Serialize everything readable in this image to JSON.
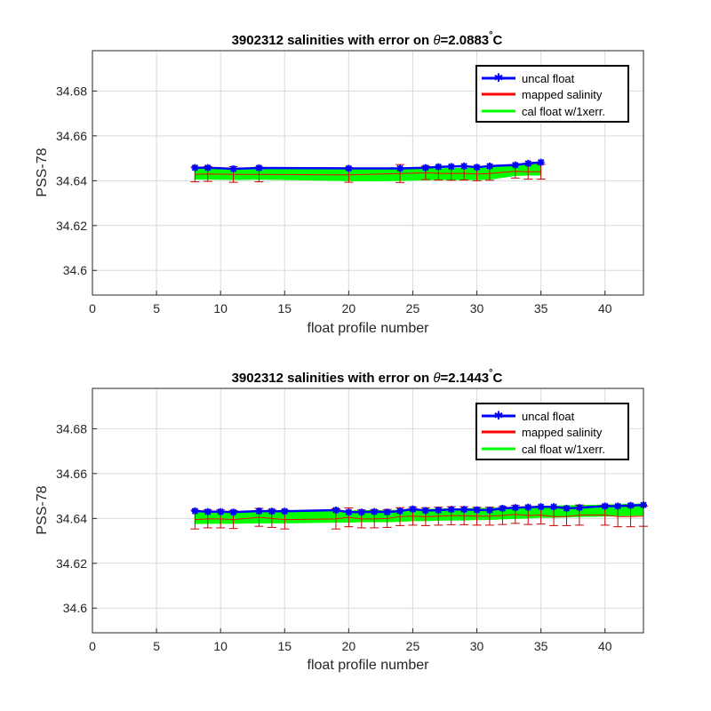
{
  "colors": {
    "uncal": "#0000ff",
    "mapped": "#ff0000",
    "errorbar": "#cc0000",
    "cal": "#00ff00",
    "grid": "#d9d9d9",
    "axis": "#262626"
  },
  "chart_data": [
    {
      "type": "line",
      "title_prefix": "3902312 salinities with error on ",
      "title_theta": "θ",
      "title_value": "=2.0883",
      "title_deg": "°",
      "title_unit": "C",
      "xlabel": "float profile number",
      "ylabel": "PSS-78",
      "xlim": [
        0,
        43
      ],
      "ylim": [
        34.589,
        34.698
      ],
      "xticks": [
        0,
        5,
        10,
        15,
        20,
        25,
        30,
        35,
        40
      ],
      "yticks": [
        34.6,
        34.62,
        34.64,
        34.66,
        34.68
      ],
      "ytick_labels": [
        "34.6",
        "34.62",
        "34.64",
        "34.66",
        "34.68"
      ],
      "grid": true,
      "legend": {
        "position": "top-right",
        "entries": [
          "uncal float",
          "mapped salinity",
          "cal float w/1xerr."
        ]
      },
      "series": [
        {
          "name": "uncal float",
          "x": [
            8,
            9,
            11,
            13,
            20,
            24,
            26,
            27,
            28,
            29,
            30,
            31,
            33,
            34,
            35
          ],
          "y": [
            34.6458,
            34.6458,
            34.6453,
            34.6457,
            34.6455,
            34.6455,
            34.6458,
            34.6462,
            34.6463,
            34.6465,
            34.646,
            34.6465,
            34.647,
            34.6477,
            34.6482
          ]
        },
        {
          "name": "mapped salinity",
          "x": [
            8,
            9,
            11,
            13,
            20,
            24,
            26,
            27,
            28,
            29,
            30,
            31,
            33,
            34,
            35
          ],
          "y": [
            34.6428,
            34.643,
            34.6428,
            34.6428,
            34.6426,
            34.6432,
            34.6435,
            34.6433,
            34.6432,
            34.6433,
            34.643,
            34.6432,
            34.6442,
            34.644,
            34.644
          ],
          "err": [
            0.0033,
            0.0033,
            0.0035,
            0.0033,
            0.0033,
            0.004,
            0.003,
            0.003,
            0.003,
            0.003,
            0.003,
            0.003,
            0.003,
            0.0033,
            0.0033
          ]
        },
        {
          "name": "cal float w/1xerr.",
          "x": [
            8,
            9,
            11,
            13,
            20,
            21,
            24,
            26,
            27,
            28,
            29,
            30,
            31,
            33,
            34,
            35
          ],
          "y": [
            34.6432,
            34.6432,
            34.643,
            34.6432,
            34.6425,
            34.6424,
            34.6426,
            34.6429,
            34.643,
            34.643,
            34.643,
            34.643,
            34.6432,
            34.6448,
            34.645,
            34.645
          ],
          "err": [
            0.0025,
            0.0025,
            0.0025,
            0.0025,
            0.0025,
            0.0025,
            0.0025,
            0.0025,
            0.0025,
            0.0025,
            0.0025,
            0.0025,
            0.0025,
            0.0025,
            0.0025,
            0.0025
          ]
        }
      ]
    },
    {
      "type": "line",
      "title_prefix": "3902312 salinities with error on ",
      "title_theta": "θ",
      "title_value": "=2.1443",
      "title_deg": "°",
      "title_unit": "C",
      "xlabel": "float profile number",
      "ylabel": "PSS-78",
      "xlim": [
        0,
        43
      ],
      "ylim": [
        34.589,
        34.698
      ],
      "xticks": [
        0,
        5,
        10,
        15,
        20,
        25,
        30,
        35,
        40
      ],
      "yticks": [
        34.6,
        34.62,
        34.64,
        34.66,
        34.68
      ],
      "ytick_labels": [
        "34.6",
        "34.62",
        "34.64",
        "34.66",
        "34.68"
      ],
      "grid": true,
      "legend": {
        "position": "top-right",
        "entries": [
          "uncal float",
          "mapped salinity",
          "cal float w/1xerr."
        ]
      },
      "series": [
        {
          "name": "uncal float",
          "x": [
            8,
            9,
            10,
            11,
            13,
            14,
            15,
            19,
            20,
            21,
            22,
            23,
            24,
            25,
            26,
            27,
            28,
            29,
            30,
            31,
            32,
            33,
            34,
            35,
            36,
            37,
            38,
            40,
            41,
            42,
            43
          ],
          "y": [
            34.6433,
            34.643,
            34.643,
            34.6428,
            34.6433,
            34.6432,
            34.6432,
            34.6437,
            34.6428,
            34.6428,
            34.643,
            34.6428,
            34.6433,
            34.6442,
            34.6435,
            34.6437,
            34.644,
            34.644,
            34.6438,
            34.6437,
            34.6445,
            34.6448,
            34.645,
            34.6452,
            34.6452,
            34.6445,
            34.6448,
            34.6455,
            34.6455,
            34.6458,
            34.646
          ]
        },
        {
          "name": "mapped salinity",
          "x": [
            8,
            9,
            10,
            11,
            13,
            14,
            15,
            19,
            20,
            21,
            22,
            23,
            24,
            25,
            26,
            27,
            28,
            29,
            30,
            31,
            32,
            33,
            34,
            35,
            36,
            37,
            38,
            40,
            41,
            42,
            43
          ],
          "y": [
            34.6395,
            34.6398,
            34.6398,
            34.6395,
            34.6405,
            34.64,
            34.6395,
            34.6398,
            34.6405,
            34.6398,
            34.6398,
            34.64,
            34.6408,
            34.641,
            34.6408,
            34.641,
            34.6412,
            34.6412,
            34.641,
            34.641,
            34.6413,
            34.6418,
            34.6413,
            34.6415,
            34.6408,
            34.6408,
            34.6415,
            34.6415,
            34.6408,
            34.6408,
            34.641
          ],
          "err": [
            0.0042,
            0.004,
            0.004,
            0.004,
            0.004,
            0.004,
            0.0042,
            0.0045,
            0.0042,
            0.004,
            0.004,
            0.004,
            0.004,
            0.004,
            0.004,
            0.004,
            0.004,
            0.004,
            0.004,
            0.004,
            0.004,
            0.004,
            0.004,
            0.004,
            0.004,
            0.004,
            0.0045,
            0.0045,
            0.0045,
            0.0045,
            0.0045
          ]
        },
        {
          "name": "cal float w/1xerr.",
          "x": [
            8,
            9,
            10,
            11,
            13,
            14,
            15,
            19,
            20,
            21,
            22,
            23,
            24,
            25,
            26,
            27,
            28,
            29,
            30,
            31,
            32,
            33,
            34,
            35,
            36,
            37,
            38,
            40,
            41,
            42,
            43
          ],
          "y": [
            34.6402,
            34.6403,
            34.6403,
            34.6403,
            34.6405,
            34.6405,
            34.6405,
            34.6408,
            34.6408,
            34.641,
            34.641,
            34.641,
            34.6412,
            34.6415,
            34.6415,
            34.6417,
            34.6418,
            34.6418,
            34.642,
            34.642,
            34.6423,
            34.6425,
            34.6427,
            34.643,
            34.643,
            34.6432,
            34.6433,
            34.6435,
            34.6437,
            34.6438,
            34.644
          ],
          "err": [
            0.0025,
            0.0025,
            0.0025,
            0.0025,
            0.0025,
            0.0025,
            0.0025,
            0.0025,
            0.0025,
            0.0025,
            0.0025,
            0.0025,
            0.0025,
            0.0025,
            0.0025,
            0.0025,
            0.0025,
            0.0025,
            0.0025,
            0.0025,
            0.0025,
            0.0025,
            0.0025,
            0.0025,
            0.0025,
            0.0025,
            0.0025,
            0.0025,
            0.0025,
            0.0025,
            0.0025
          ]
        }
      ]
    }
  ]
}
